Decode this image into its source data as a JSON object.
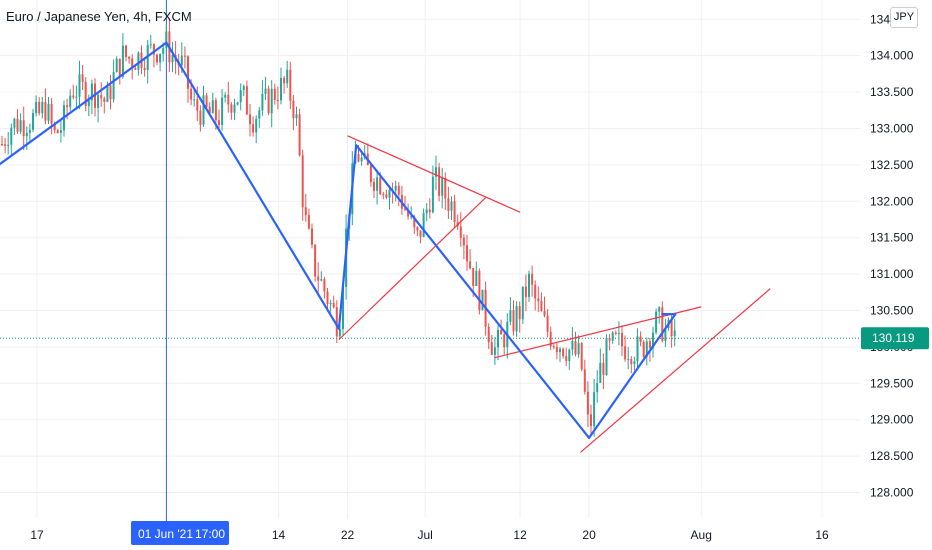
{
  "header": {
    "title": "Euro / Japanese Yen, 4h, FXCM",
    "currency": "JPY"
  },
  "colors": {
    "grid": "#eef0f3",
    "up": "#26a69a",
    "down": "#ef5350",
    "zigzag": "#2962ff",
    "trendline": "#f23645",
    "crosshair": "#2962ff",
    "price_tag": "#089981"
  },
  "crosshair": {
    "date_label": "01 Jun '21",
    "time_label": "17:00"
  },
  "last_price": {
    "value": 130.119,
    "label": "130.119"
  },
  "chart_data": {
    "type": "candlestick",
    "title": "Euro / Japanese Yen, 4h, FXCM",
    "ylim": [
      127.65,
      134.6
    ],
    "y_ticks": [
      "128.000",
      "128.500",
      "129.000",
      "129.500",
      "130.000",
      "130.500",
      "131.000",
      "131.500",
      "132.000",
      "132.500",
      "133.000",
      "133.500",
      "134.000",
      "134.500"
    ],
    "x_ticks": [
      "17",
      "01 Jun '21",
      "14",
      "22",
      "Jul",
      "12",
      "20",
      "Aug",
      "16"
    ],
    "grid": true,
    "price_path": [
      [
        "May 12",
        132.55
      ],
      [
        "May 13",
        132.8
      ],
      [
        "May 14",
        133.05
      ],
      [
        "May 17",
        133.15
      ],
      [
        "May 18",
        133.3
      ],
      [
        "May 19",
        132.9
      ],
      [
        "May 20",
        133.05
      ],
      [
        "May 21",
        133.55
      ],
      [
        "May 24",
        133.5
      ],
      [
        "May 25",
        133.35
      ],
      [
        "May 26",
        133.75
      ],
      [
        "May 27",
        134.0
      ],
      [
        "May 28",
        133.95
      ],
      [
        "Jun 1",
        134.15
      ],
      [
        "Jun 2",
        133.95
      ],
      [
        "Jun 3",
        133.85
      ],
      [
        "Jun 4",
        133.3
      ],
      [
        "Jun 7",
        133.15
      ],
      [
        "Jun 8",
        133.35
      ],
      [
        "Jun 9",
        133.45
      ],
      [
        "Jun 10",
        133.4
      ],
      [
        "Jun 11",
        133.15
      ],
      [
        "Jun 14",
        133.55
      ],
      [
        "Jun 15",
        133.6
      ],
      [
        "Jun 16",
        133.2
      ],
      [
        "Jun 17",
        131.8
      ],
      [
        "Jun 18",
        131.15
      ],
      [
        "Jun 21",
        130.3
      ],
      [
        "Jun 22",
        131.8
      ],
      [
        "Jun 23",
        132.7
      ],
      [
        "Jun 24",
        132.45
      ],
      [
        "Jun 25",
        132.35
      ],
      [
        "Jun 28",
        132.1
      ],
      [
        "Jun 29",
        131.8
      ],
      [
        "Jun 30",
        131.45
      ],
      [
        "Jul 1",
        131.8
      ],
      [
        "Jul 2",
        132.3
      ],
      [
        "Jul 5",
        131.8
      ],
      [
        "Jul 6",
        131.2
      ],
      [
        "Jul 7",
        130.85
      ],
      [
        "Jul 8",
        130.4
      ],
      [
        "Jul 9",
        129.95
      ],
      [
        "Jul 12",
        130.5
      ],
      [
        "Jul 13",
        130.9
      ],
      [
        "Jul 14",
        130.55
      ],
      [
        "Jul 15",
        130.25
      ],
      [
        "Jul 16",
        130.1
      ],
      [
        "Jul 19",
        129.85
      ],
      [
        "Jul 20",
        128.8
      ],
      [
        "Jul 21",
        129.6
      ],
      [
        "Jul 22",
        129.9
      ],
      [
        "Jul 23",
        130.05
      ],
      [
        "Jul 26",
        129.95
      ],
      [
        "Jul 27",
        130.2
      ],
      [
        "Jul 28",
        130.35
      ],
      [
        "Jul 29",
        130.2
      ],
      [
        "Jul 30",
        130.1
      ]
    ],
    "zigzag": [
      [
        "May 12",
        132.45
      ],
      [
        "Jun 1",
        134.18
      ],
      [
        "Jun 21",
        130.25
      ],
      [
        "Jun 23",
        132.77
      ],
      [
        "Jul 20",
        128.75
      ],
      [
        "Jul 30",
        130.45
      ]
    ],
    "trendlines": [
      [
        [
          "Jun 21",
          130.1
        ],
        [
          "Jul 8",
          132.05
        ]
      ],
      [
        [
          "Jun 22",
          132.9
        ],
        [
          "Jul 12",
          131.85
        ]
      ],
      [
        [
          "Jul 9",
          129.85
        ],
        [
          "Aug 2",
          130.55
        ]
      ],
      [
        [
          "Jul 19",
          128.55
        ],
        [
          "Aug 10",
          130.8
        ]
      ]
    ]
  }
}
